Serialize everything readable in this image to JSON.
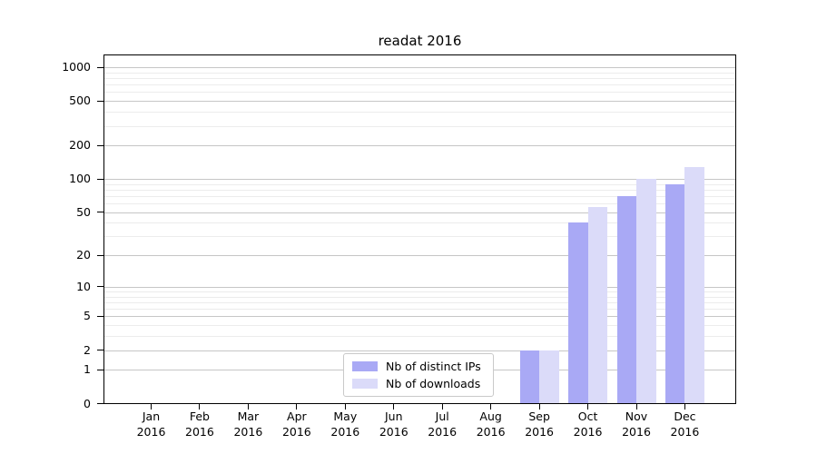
{
  "chart": {
    "title": "readat 2016"
  },
  "chart_data": {
    "type": "bar",
    "title": "readat 2016",
    "categories": [
      "Jan 2016",
      "Feb 2016",
      "Mar 2016",
      "Apr 2016",
      "May 2016",
      "Jun 2016",
      "Jul 2016",
      "Aug 2016",
      "Sep 2016",
      "Oct 2016",
      "Nov 2016",
      "Dec 2016"
    ],
    "x_tick_months": [
      "Jan",
      "Feb",
      "Mar",
      "Apr",
      "May",
      "Jun",
      "Jul",
      "Aug",
      "Sep",
      "Oct",
      "Nov",
      "Dec"
    ],
    "x_tick_year": "2016",
    "series": [
      {
        "name": "Nb of distinct IPs",
        "color": "#a9a9f5",
        "values": [
          0,
          0,
          0,
          0,
          0,
          0,
          0,
          0,
          2,
          40,
          70,
          90
        ]
      },
      {
        "name": "Nb of downloads",
        "color": "#dbdbf9",
        "values": [
          0,
          0,
          0,
          0,
          0,
          0,
          0,
          0,
          2,
          56,
          100,
          127
        ]
      }
    ],
    "yticks": [
      0,
      1,
      2,
      5,
      10,
      20,
      50,
      100,
      200,
      500,
      1000
    ],
    "ytick_labels": [
      "0",
      "1",
      "2",
      "5",
      "10",
      "20",
      "50",
      "100",
      "200",
      "500",
      "1000"
    ],
    "yscale": "log10(value+1)",
    "ylim": [
      0,
      1300
    ],
    "xlabel": "",
    "ylabel": "",
    "grid": "major and minor horizontal gridlines",
    "legend_position": "inside lower center",
    "colors": {
      "bar_distinct_ips": "#a9a9f5",
      "bar_downloads": "#dbdbf9",
      "grid_major": "#c6c6c6",
      "grid_minor": "#ececec",
      "spine": "#000000",
      "background": "#ffffff"
    }
  }
}
